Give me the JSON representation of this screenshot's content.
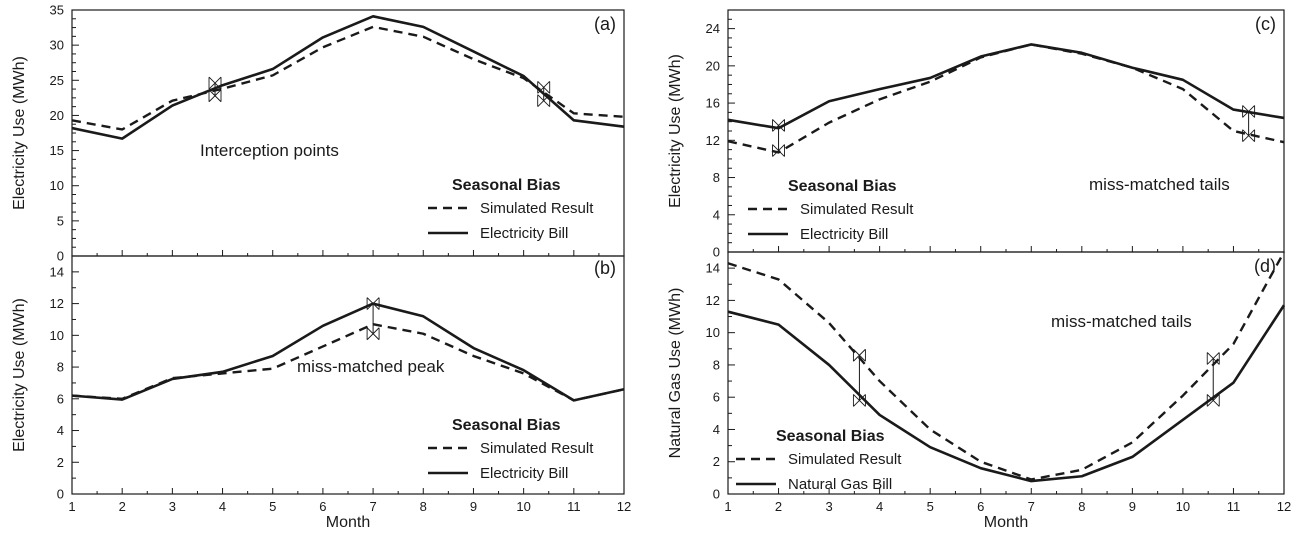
{
  "chart_data": [
    {
      "panel": "(a)",
      "type": "line",
      "x": [
        1,
        2,
        3,
        4,
        5,
        6,
        7,
        8,
        9,
        10,
        11,
        12
      ],
      "ylabel": "Electricity Use (MWh)",
      "ylim": [
        0,
        35
      ],
      "ymajor": [
        0,
        5,
        10,
        15,
        20,
        25,
        30,
        35
      ],
      "series": [
        {
          "name": "Simulated Result",
          "style": "dashed",
          "values": [
            19.3,
            18.0,
            22.1,
            23.8,
            25.7,
            29.7,
            32.6,
            31.2,
            28.0,
            25.3,
            20.3,
            19.8
          ]
        },
        {
          "name": "Electricity Bill",
          "style": "solid",
          "values": [
            18.2,
            16.7,
            21.4,
            24.3,
            26.6,
            31.1,
            34.1,
            32.6,
            29.1,
            25.6,
            19.3,
            18.4
          ]
        }
      ],
      "annotation": "Interception points",
      "legend_title": "Seasonal Bias",
      "legend_placement": "bottom-right",
      "markers": [
        {
          "x": 3.85,
          "y1": 22.8,
          "y2": 24.6
        },
        {
          "x": 10.4,
          "y1": 22.1,
          "y2": 24.0
        }
      ]
    },
    {
      "panel": "(b)",
      "type": "line",
      "x": [
        1,
        2,
        3,
        4,
        5,
        6,
        7,
        8,
        9,
        10,
        11,
        12
      ],
      "xlabel": "Month",
      "ylabel": "Electricity Use (MWh)",
      "ylim": [
        0,
        15
      ],
      "ymajor": [
        0,
        2,
        4,
        6,
        8,
        10,
        12,
        14
      ],
      "series": [
        {
          "name": "Simulated Result",
          "style": "dashed",
          "values": [
            6.2,
            6.0,
            7.3,
            7.6,
            7.9,
            9.3,
            10.7,
            10.1,
            8.7,
            7.6,
            5.9,
            6.6
          ]
        },
        {
          "name": "Electricity Bill",
          "style": "solid",
          "values": [
            6.2,
            5.95,
            7.25,
            7.7,
            8.7,
            10.6,
            12.0,
            11.2,
            9.2,
            7.8,
            5.9,
            6.6
          ]
        }
      ],
      "annotation": "miss-matched peak",
      "legend_title": "Seasonal Bias",
      "legend_placement": "bottom-right",
      "markers": [
        {
          "x": 7,
          "y1": 10.1,
          "y2": 12.0
        }
      ]
    },
    {
      "panel": "(c)",
      "type": "line",
      "x": [
        1,
        2,
        3,
        4,
        5,
        6,
        7,
        8,
        9,
        10,
        11,
        12
      ],
      "ylabel": "Electricity Use (MWh)",
      "ylim": [
        0,
        26
      ],
      "ymajor": [
        0,
        4,
        8,
        12,
        16,
        20,
        24
      ],
      "series": [
        {
          "name": "Simulated Result",
          "style": "dashed",
          "values": [
            11.9,
            10.7,
            13.9,
            16.4,
            18.3,
            20.9,
            22.3,
            21.3,
            19.8,
            17.5,
            13.0,
            11.8
          ]
        },
        {
          "name": "Electricity Bill",
          "style": "solid",
          "values": [
            14.2,
            13.3,
            16.2,
            17.5,
            18.7,
            21.0,
            22.3,
            21.4,
            19.8,
            18.5,
            15.3,
            14.4
          ]
        }
      ],
      "annotation": "miss-matched tails",
      "legend_title": "Seasonal Bias",
      "legend_placement": "bottom-left",
      "markers": [
        {
          "x": 2,
          "y1": 10.9,
          "y2": 13.6
        },
        {
          "x": 11.3,
          "y1": 12.5,
          "y2": 15.1
        }
      ]
    },
    {
      "panel": "(d)",
      "type": "line",
      "x": [
        1,
        2,
        3,
        4,
        5,
        6,
        7,
        8,
        9,
        10,
        11,
        12
      ],
      "xlabel": "Month",
      "ylabel": "Natural Gas Use (MWh)",
      "ylim": [
        0,
        15
      ],
      "ymajor": [
        0,
        2,
        4,
        6,
        8,
        10,
        12,
        14
      ],
      "series": [
        {
          "name": "Simulated Result",
          "style": "dashed",
          "values": [
            14.3,
            13.3,
            10.6,
            7.0,
            4.0,
            2.0,
            0.9,
            1.5,
            3.2,
            6.1,
            9.3,
            15.0
          ]
        },
        {
          "name": "Natural Gas Bill",
          "style": "solid",
          "values": [
            11.3,
            10.5,
            8.0,
            4.9,
            2.9,
            1.6,
            0.8,
            1.1,
            2.3,
            4.6,
            6.9,
            11.7
          ]
        }
      ],
      "annotation": "miss-matched tails",
      "legend_title": "Seasonal Bias",
      "legend_placement": "bottom-left",
      "markers": [
        {
          "x": 3.6,
          "y1": 5.8,
          "y2": 8.6
        },
        {
          "x": 10.6,
          "y1": 5.8,
          "y2": 8.4
        }
      ]
    }
  ]
}
